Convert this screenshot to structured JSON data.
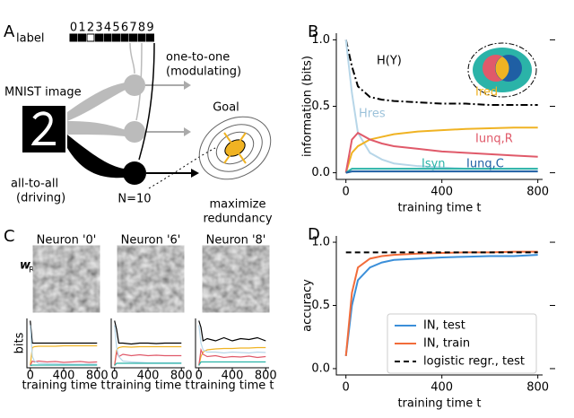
{
  "panel_labels": [
    "A",
    "B",
    "C",
    "D"
  ],
  "diagram": {
    "label": "label",
    "digits": [
      "0",
      "1",
      "2",
      "3",
      "4",
      "5",
      "6",
      "7",
      "8",
      "9"
    ],
    "one_to_one": "one-to-one",
    "modulating": "(modulating)",
    "mnist": "MNIST image",
    "all_to_all": "all-to-all",
    "driving": "(driving)",
    "n": "N=10",
    "goal": "Goal",
    "maximize": "maximize",
    "redundancy": "redundancy"
  },
  "neurons": {
    "weight_label": "w",
    "weight_sub": "R",
    "titles": [
      "Neuron '0'",
      "Neuron '6'",
      "Neuron '8'"
    ]
  },
  "chart_data": [
    {
      "type": "line",
      "xlabel": "training time t",
      "ylabel": "information (bits)",
      "x": [
        0,
        25,
        50,
        100,
        150,
        200,
        300,
        400,
        500,
        600,
        700,
        800
      ],
      "xlim": [
        -40,
        820
      ],
      "ylim": [
        -0.05,
        1.05
      ],
      "xticks": [
        0,
        400,
        800
      ],
      "yticks": [
        {
          "value": 0,
          "label": "0.0"
        },
        {
          "value": 0.5,
          "label": "0.5"
        },
        {
          "value": 1,
          "label": "1.0"
        }
      ],
      "series": [
        {
          "name": "H(Y)",
          "color": "#000000",
          "dash": "8 3 2 3",
          "values": [
            1.0,
            0.8,
            0.65,
            0.57,
            0.55,
            0.54,
            0.53,
            0.52,
            0.52,
            0.51,
            0.51,
            0.51
          ]
        },
        {
          "name": "Hres",
          "color": "#b7d6e8",
          "values": [
            1.0,
            0.6,
            0.3,
            0.15,
            0.1,
            0.07,
            0.05,
            0.04,
            0.03,
            0.03,
            0.03,
            0.03
          ]
        },
        {
          "name": "Ired",
          "color": "#f0b323",
          "values": [
            0,
            0.15,
            0.2,
            0.25,
            0.27,
            0.29,
            0.31,
            0.32,
            0.33,
            0.335,
            0.34,
            0.34
          ]
        },
        {
          "name": "Iunq,R",
          "color": "#e05a6a",
          "values": [
            0,
            0.25,
            0.3,
            0.25,
            0.22,
            0.2,
            0.18,
            0.16,
            0.15,
            0.14,
            0.13,
            0.12
          ]
        },
        {
          "name": "Isyn",
          "color": "#2bb3a8",
          "values": [
            0,
            0.03,
            0.03,
            0.03,
            0.03,
            0.03,
            0.03,
            0.03,
            0.03,
            0.03,
            0.03,
            0.03
          ]
        },
        {
          "name": "Iunq,C",
          "color": "#1f5fa4",
          "values": [
            0,
            0.01,
            0.01,
            0.01,
            0.01,
            0.01,
            0.01,
            0.01,
            0.01,
            0.01,
            0.01,
            0.01
          ]
        }
      ]
    },
    {
      "type": "line",
      "xlabel": "training time t",
      "ylabel": "accuracy",
      "legend": "lower right",
      "x": [
        0,
        25,
        50,
        100,
        150,
        200,
        300,
        400,
        500,
        600,
        700,
        800
      ],
      "xlim": [
        -40,
        820
      ],
      "ylim": [
        -0.05,
        1.05
      ],
      "xticks": [
        0,
        400,
        800
      ],
      "yticks": [
        {
          "value": 0,
          "label": "0.0"
        },
        {
          "value": 0.5,
          "label": "0.5"
        },
        {
          "value": 1,
          "label": "1.0"
        }
      ],
      "series": [
        {
          "name": "IN, test",
          "color": "#3b8fd9",
          "values": [
            0.1,
            0.5,
            0.7,
            0.8,
            0.84,
            0.86,
            0.87,
            0.88,
            0.885,
            0.89,
            0.89,
            0.9
          ]
        },
        {
          "name": "IN, train",
          "color": "#f26c3a",
          "values": [
            0.1,
            0.6,
            0.8,
            0.87,
            0.89,
            0.9,
            0.91,
            0.915,
            0.92,
            0.92,
            0.925,
            0.925
          ]
        },
        {
          "name": "logistic regr., test",
          "color": "#000000",
          "dash": "6 4",
          "values": [
            0.92,
            0.92,
            0.92,
            0.92,
            0.92,
            0.92,
            0.92,
            0.92,
            0.92,
            0.92,
            0.92,
            0.92
          ]
        }
      ]
    },
    {
      "type": "line",
      "xlabel": "training time t",
      "ylabel": "bits",
      "x": [
        0,
        25,
        50,
        100,
        200,
        300,
        400,
        500,
        600,
        700,
        800
      ],
      "xlim": [
        -40,
        840
      ],
      "ylim": [
        -0.05,
        1.05
      ],
      "xticks": [
        0,
        400,
        800
      ],
      "series": [
        {
          "color": "#000000",
          "values": [
            1.0,
            0.5,
            0.5,
            0.5,
            0.5,
            0.5,
            0.5,
            0.5,
            0.5,
            0.5,
            0.5
          ]
        },
        {
          "color": "#f0b323",
          "values": [
            0,
            0.4,
            0.42,
            0.43,
            0.43,
            0.43,
            0.44,
            0.44,
            0.44,
            0.44,
            0.44
          ]
        },
        {
          "color": "#e05a6a",
          "values": [
            0,
            0.1,
            0.08,
            0.1,
            0.08,
            0.09,
            0.07,
            0.08,
            0.09,
            0.07,
            0.08
          ]
        },
        {
          "color": "#b7d6e8",
          "values": [
            0.9,
            0.2,
            0.1,
            0.05,
            0.04,
            0.04,
            0.03,
            0.03,
            0.03,
            0.03,
            0.03
          ]
        },
        {
          "color": "#2bb3a8",
          "values": [
            0,
            0.01,
            0.01,
            0.01,
            0.01,
            0.01,
            0.01,
            0.01,
            0.01,
            0.01,
            0.01
          ]
        }
      ]
    },
    {
      "type": "line",
      "xlabel": "training time t",
      "x": [
        0,
        25,
        50,
        100,
        200,
        300,
        400,
        500,
        600,
        700,
        800
      ],
      "xlim": [
        -40,
        840
      ],
      "ylim": [
        -0.05,
        1.05
      ],
      "xticks": [
        0,
        400,
        800
      ],
      "series": [
        {
          "color": "#000000",
          "values": [
            1.0,
            0.8,
            0.5,
            0.5,
            0.48,
            0.5,
            0.5,
            0.49,
            0.5,
            0.5,
            0.5
          ]
        },
        {
          "color": "#f0b323",
          "values": [
            0,
            0.35,
            0.4,
            0.42,
            0.41,
            0.42,
            0.42,
            0.42,
            0.42,
            0.42,
            0.42
          ]
        },
        {
          "color": "#e05a6a",
          "values": [
            0,
            0.3,
            0.2,
            0.25,
            0.22,
            0.24,
            0.22,
            0.23,
            0.22,
            0.22,
            0.22
          ]
        },
        {
          "color": "#b7d6e8",
          "values": [
            0.9,
            0.4,
            0.2,
            0.1,
            0.08,
            0.07,
            0.06,
            0.06,
            0.06,
            0.06,
            0.06
          ]
        },
        {
          "color": "#2bb3a8",
          "values": [
            0,
            0.05,
            0.05,
            0.05,
            0.05,
            0.05,
            0.05,
            0.05,
            0.05,
            0.05,
            0.05
          ]
        }
      ]
    },
    {
      "type": "line",
      "xlabel": "training time t",
      "x": [
        0,
        25,
        50,
        100,
        200,
        300,
        400,
        500,
        600,
        700,
        800
      ],
      "xlim": [
        -40,
        840
      ],
      "ylim": [
        -0.05,
        1.05
      ],
      "xticks": [
        0,
        400,
        800
      ],
      "series": [
        {
          "color": "#000000",
          "values": [
            1.0,
            0.85,
            0.55,
            0.6,
            0.55,
            0.62,
            0.55,
            0.6,
            0.58,
            0.62,
            0.55
          ]
        },
        {
          "color": "#f0b323",
          "values": [
            0,
            0.2,
            0.3,
            0.35,
            0.37,
            0.38,
            0.38,
            0.39,
            0.39,
            0.4,
            0.4
          ]
        },
        {
          "color": "#e05a6a",
          "values": [
            0,
            0.35,
            0.25,
            0.2,
            0.22,
            0.18,
            0.2,
            0.19,
            0.21,
            0.18,
            0.2
          ]
        },
        {
          "color": "#b7d6e8",
          "values": [
            0.9,
            0.5,
            0.35,
            0.3,
            0.3,
            0.28,
            0.3,
            0.29,
            0.28,
            0.3,
            0.29
          ]
        },
        {
          "color": "#2bb3a8",
          "values": [
            0,
            0.08,
            0.08,
            0.08,
            0.08,
            0.08,
            0.08,
            0.08,
            0.08,
            0.08,
            0.08
          ]
        }
      ]
    }
  ]
}
